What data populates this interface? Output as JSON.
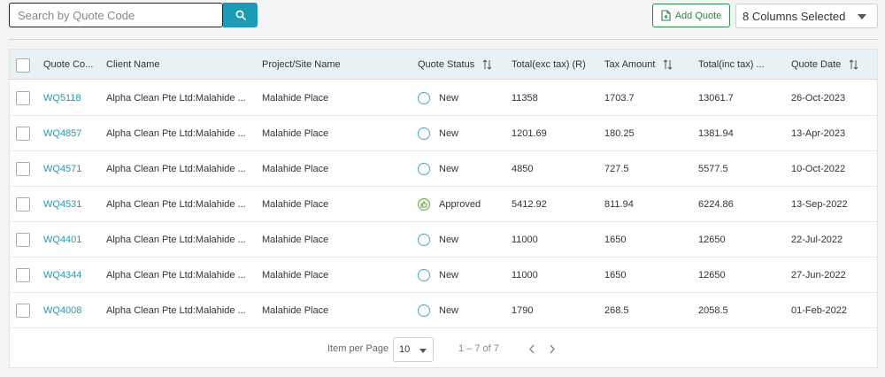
{
  "search": {
    "placeholder": "Search by Quote Code",
    "value": ""
  },
  "toolbar": {
    "add_quote_label": "Add Quote",
    "columns_selected": "8 Columns Selected"
  },
  "table": {
    "columns": [
      "Quote Co...",
      "Client Name",
      "Project/Site Name",
      "Quote Status",
      "Total(exc tax) (R)",
      "Tax Amount",
      "Total(inc tax) ...",
      "Quote Date"
    ],
    "rows": [
      {
        "code": "WQ5118",
        "client": "Alpha Clean Pte Ltd:Malahide ...",
        "project": "Malahide Place",
        "status": "New",
        "total_exc": "11358",
        "tax": "1703.7",
        "total_inc": "13061.7",
        "date": "26-Oct-2023"
      },
      {
        "code": "WQ4857",
        "client": "Alpha Clean Pte Ltd:Malahide ...",
        "project": "Malahide Place",
        "status": "New",
        "total_exc": "1201.69",
        "tax": "180.25",
        "total_inc": "1381.94",
        "date": "13-Apr-2023"
      },
      {
        "code": "WQ4571",
        "client": "Alpha Clean Pte Ltd:Malahide ...",
        "project": "Malahide Place",
        "status": "New",
        "total_exc": "4850",
        "tax": "727.5",
        "total_inc": "5577.5",
        "date": "10-Oct-2022"
      },
      {
        "code": "WQ4531",
        "client": "Alpha Clean Pte Ltd:Malahide ...",
        "project": "Malahide Place",
        "status": "Approved",
        "total_exc": "5412.92",
        "tax": "811.94",
        "total_inc": "6224.86",
        "date": "13-Sep-2022"
      },
      {
        "code": "WQ4401",
        "client": "Alpha Clean Pte Ltd:Malahide ...",
        "project": "Malahide Place",
        "status": "New",
        "total_exc": "11000",
        "tax": "1650",
        "total_inc": "12650",
        "date": "22-Jul-2022"
      },
      {
        "code": "WQ4344",
        "client": "Alpha Clean Pte Ltd:Malahide ...",
        "project": "Malahide Place",
        "status": "New",
        "total_exc": "11000",
        "tax": "1650",
        "total_inc": "12650",
        "date": "27-Jun-2022"
      },
      {
        "code": "WQ4008",
        "client": "Alpha Clean Pte Ltd:Malahide ...",
        "project": "Malahide Place",
        "status": "New",
        "total_exc": "1790",
        "tax": "268.5",
        "total_inc": "2058.5",
        "date": "01-Feb-2022"
      }
    ]
  },
  "pagination": {
    "items_per_page_label": "Item per Page",
    "items_per_page": "10",
    "range": "1 – 7 of 7"
  },
  "colors": {
    "accent": "#1b9bb5",
    "add_button": "#2f7d4a",
    "status_new": "#4aa3d4",
    "status_approved": "#6aa84f"
  },
  "icons": {
    "search": "search-icon",
    "add_quote": "document-plus-icon",
    "sort": "sort-arrows-icon",
    "approved": "thumbs-up-icon",
    "prev": "chevron-left-icon",
    "next": "chevron-right-icon"
  }
}
